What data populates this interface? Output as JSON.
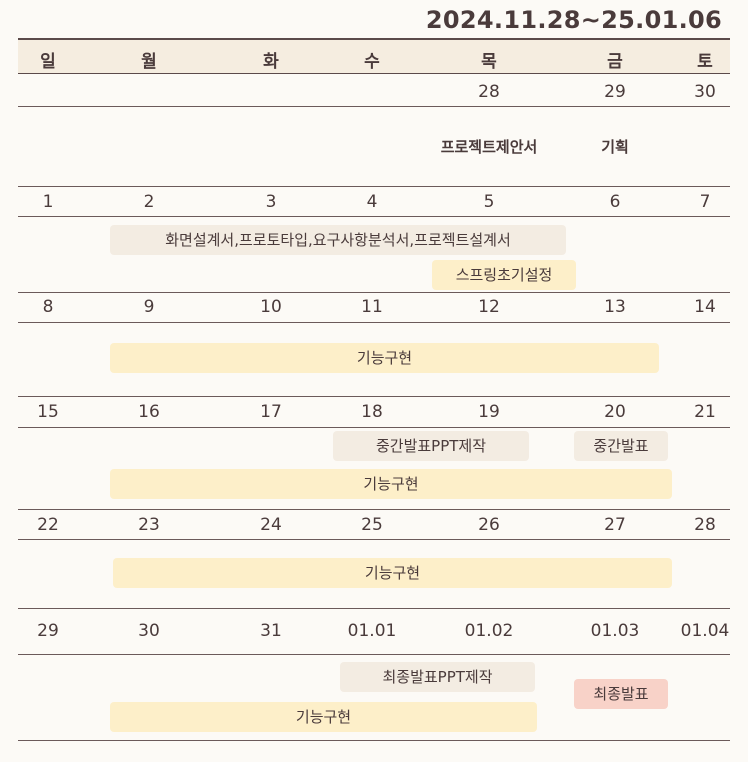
{
  "header": {
    "date_range": "2024.11.28~25.01.06"
  },
  "weekdays": [
    "일",
    "월",
    "화",
    "수",
    "목",
    "금",
    "토"
  ],
  "weeks": [
    {
      "days": [
        "",
        "",
        "",
        "",
        "28",
        "29",
        "30"
      ]
    },
    {
      "days": [
        "1",
        "2",
        "3",
        "4",
        "5",
        "6",
        "7"
      ]
    },
    {
      "days": [
        "8",
        "9",
        "10",
        "11",
        "12",
        "13",
        "14"
      ]
    },
    {
      "days": [
        "15",
        "16",
        "17",
        "18",
        "19",
        "20",
        "21"
      ]
    },
    {
      "days": [
        "22",
        "23",
        "24",
        "25",
        "26",
        "27",
        "28"
      ]
    },
    {
      "days": [
        "29",
        "30",
        "31",
        "01.01",
        "01.02",
        "01.03",
        "01.04"
      ]
    }
  ],
  "notes": [
    {
      "text": "프로젝트제안서"
    },
    {
      "text": "기획"
    }
  ],
  "events": [
    {
      "label": "화면설계서,프로토타입,요구사항분석서,프로젝트설계서",
      "color": "#f3ece2"
    },
    {
      "label": "스프링초기설정",
      "color": "#fdefc9"
    },
    {
      "label": "기능구현",
      "color": "#fdefc9"
    },
    {
      "label": "중간발표PPT제작",
      "color": "#f3ece2"
    },
    {
      "label": "중간발표",
      "color": "#f3ece2"
    },
    {
      "label": "기능구현",
      "color": "#fdefc9"
    },
    {
      "label": "기능구현",
      "color": "#fdefc9"
    },
    {
      "label": "최종발표PPT제작",
      "color": "#f3ece2"
    },
    {
      "label": "최종발표",
      "color": "#f8d2c8"
    },
    {
      "label": "기능구현",
      "color": "#fdefc9"
    }
  ]
}
